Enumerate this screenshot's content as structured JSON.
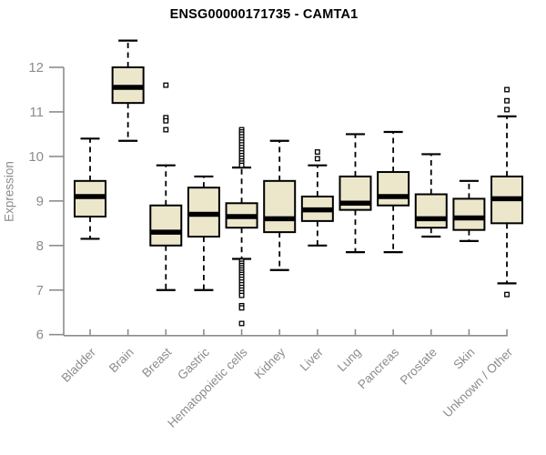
{
  "style": {
    "background": "#FFFFFF",
    "title_color": "#000000",
    "axis_line": "#8C8C8C",
    "tick_label": "#8C8C8C",
    "category_label": "#8C8C8C",
    "box_fill": "#ECE7CB",
    "box_border": "#000000",
    "median_color": "#000000",
    "whisker_color": "#000000",
    "outlier_fill": "#FFFFFF"
  },
  "chart_data": {
    "type": "boxplot",
    "title": "ENSG00000171735 - CAMTA1",
    "xlabel": "",
    "ylabel": "Expression",
    "ylim": [
      6,
      12.7
    ],
    "yticks": [
      6,
      7,
      8,
      9,
      10,
      11,
      12
    ],
    "grid": false,
    "legend": "none",
    "categories": [
      "Bladder",
      "Brain",
      "Breast",
      "Gastric",
      "Hematopoietic cells",
      "Kidney",
      "Liver",
      "Lung",
      "Pancreas",
      "Prostate",
      "Skin",
      "Unknown / Other"
    ],
    "series": [
      {
        "category": "Bladder",
        "low": 8.15,
        "q1": 8.65,
        "median": 9.1,
        "q3": 9.45,
        "high": 10.4,
        "outliers": []
      },
      {
        "category": "Brain",
        "low": 10.35,
        "q1": 11.2,
        "median": 11.55,
        "q3": 12.0,
        "high": 12.6,
        "outliers": []
      },
      {
        "category": "Breast",
        "low": 7.0,
        "q1": 8.0,
        "median": 8.3,
        "q3": 8.9,
        "high": 9.8,
        "outliers": [
          11.6,
          10.87,
          10.8,
          10.6
        ]
      },
      {
        "category": "Gastric",
        "low": 7.0,
        "q1": 8.2,
        "median": 8.7,
        "q3": 9.3,
        "high": 9.55,
        "outliers": []
      },
      {
        "category": "Hematopoietic cells",
        "low": 7.7,
        "q1": 8.4,
        "median": 8.65,
        "q3": 8.95,
        "high": 9.75,
        "outliers": [
          10.6,
          10.55,
          10.5,
          10.44,
          10.38,
          10.32,
          10.26,
          10.2,
          10.14,
          10.08,
          10.02,
          9.96,
          9.9,
          9.85,
          9.8,
          7.65,
          7.6,
          7.55,
          7.5,
          7.45,
          7.4,
          7.35,
          7.3,
          7.24,
          7.18,
          7.12,
          7.06,
          7.0,
          6.94,
          6.88,
          6.65,
          6.6,
          6.25
        ]
      },
      {
        "category": "Kidney",
        "low": 7.45,
        "q1": 8.3,
        "median": 8.6,
        "q3": 9.45,
        "high": 10.35,
        "outliers": []
      },
      {
        "category": "Liver",
        "low": 8.0,
        "q1": 8.55,
        "median": 8.8,
        "q3": 9.1,
        "high": 9.8,
        "outliers": [
          10.1,
          9.95
        ]
      },
      {
        "category": "Lung",
        "low": 7.85,
        "q1": 8.8,
        "median": 8.95,
        "q3": 9.55,
        "high": 10.5,
        "outliers": []
      },
      {
        "category": "Pancreas",
        "low": 7.85,
        "q1": 8.9,
        "median": 9.1,
        "q3": 9.65,
        "high": 10.55,
        "outliers": []
      },
      {
        "category": "Prostate",
        "low": 8.2,
        "q1": 8.4,
        "median": 8.6,
        "q3": 9.15,
        "high": 10.05,
        "outliers": []
      },
      {
        "category": "Skin",
        "low": 8.1,
        "q1": 8.35,
        "median": 8.62,
        "q3": 9.05,
        "high": 9.45,
        "outliers": []
      },
      {
        "category": "Unknown / Other",
        "low": 7.15,
        "q1": 8.5,
        "median": 9.05,
        "q3": 9.55,
        "high": 10.9,
        "outliers": [
          11.5,
          11.25,
          11.05,
          6.9
        ]
      }
    ]
  }
}
